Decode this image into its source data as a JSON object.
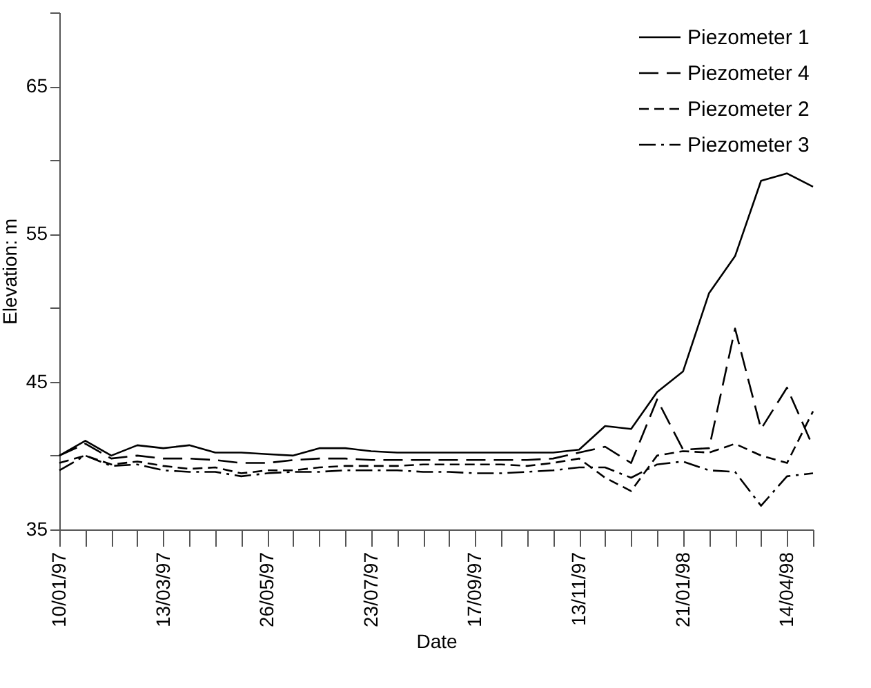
{
  "chart_data": {
    "type": "line",
    "xlabel": "Date",
    "ylabel": "Elevation: m",
    "categories": [
      "10/01/97",
      null,
      null,
      null,
      "13/03/97",
      null,
      null,
      null,
      "26/05/97",
      null,
      null,
      null,
      "23/07/97",
      null,
      null,
      null,
      "17/09/97",
      null,
      null,
      null,
      "13/11/97",
      null,
      null,
      null,
      "21/01/98",
      null,
      null,
      null,
      "14/04/98",
      null
    ],
    "ylim": [
      35,
      70
    ],
    "yticks": [
      35,
      {
        "value": 40,
        "label": null
      },
      45,
      {
        "value": 50,
        "label": null
      },
      55,
      {
        "value": 60,
        "label": null
      },
      65,
      {
        "value": 70,
        "label": null
      }
    ],
    "legend": "top right",
    "grid": false,
    "series": [
      {
        "name": "Piezometer 1",
        "color": "#000000",
        "line_style": "solid",
        "values": [
          40.0,
          41.0,
          40.0,
          40.7,
          40.5,
          40.7,
          40.2,
          40.2,
          40.1,
          40.0,
          40.5,
          40.5,
          40.3,
          40.2,
          40.2,
          40.2,
          40.2,
          40.2,
          40.2,
          40.2,
          40.4,
          42.0,
          41.8,
          44.3,
          45.7,
          51.0,
          53.5,
          58.6,
          59.1,
          58.2
        ]
      },
      {
        "name": "Piezometer 4",
        "color": "#000000",
        "line_style": "longdash",
        "values": [
          40.0,
          40.8,
          39.8,
          40.0,
          39.8,
          39.8,
          39.7,
          39.5,
          39.5,
          39.7,
          39.8,
          39.8,
          39.7,
          39.7,
          39.7,
          39.7,
          39.7,
          39.7,
          39.7,
          39.8,
          40.2,
          40.6,
          39.5,
          43.8,
          40.4,
          40.5,
          48.6,
          41.8,
          44.6,
          40.6
        ]
      },
      {
        "name": "Piezometer 2",
        "color": "#000000",
        "line_style": "dashed",
        "values": [
          39.5,
          40.0,
          39.4,
          39.6,
          39.3,
          39.1,
          39.2,
          38.8,
          39.0,
          39.0,
          39.2,
          39.3,
          39.3,
          39.3,
          39.4,
          39.4,
          39.4,
          39.4,
          39.3,
          39.5,
          39.8,
          38.5,
          37.6,
          40.0,
          40.3,
          40.2,
          40.8,
          40.0,
          39.5,
          43.0
        ]
      },
      {
        "name": "Piezometer 3",
        "color": "#000000",
        "line_style": "dashdot",
        "values": [
          39.0,
          40.0,
          39.3,
          39.4,
          39.0,
          38.9,
          38.9,
          38.6,
          38.8,
          38.9,
          38.9,
          39.0,
          39.0,
          39.0,
          38.9,
          38.9,
          38.8,
          38.8,
          38.9,
          39.0,
          39.2,
          39.2,
          38.5,
          39.4,
          39.6,
          39.0,
          38.9,
          36.6,
          38.6,
          38.8
        ]
      }
    ]
  }
}
